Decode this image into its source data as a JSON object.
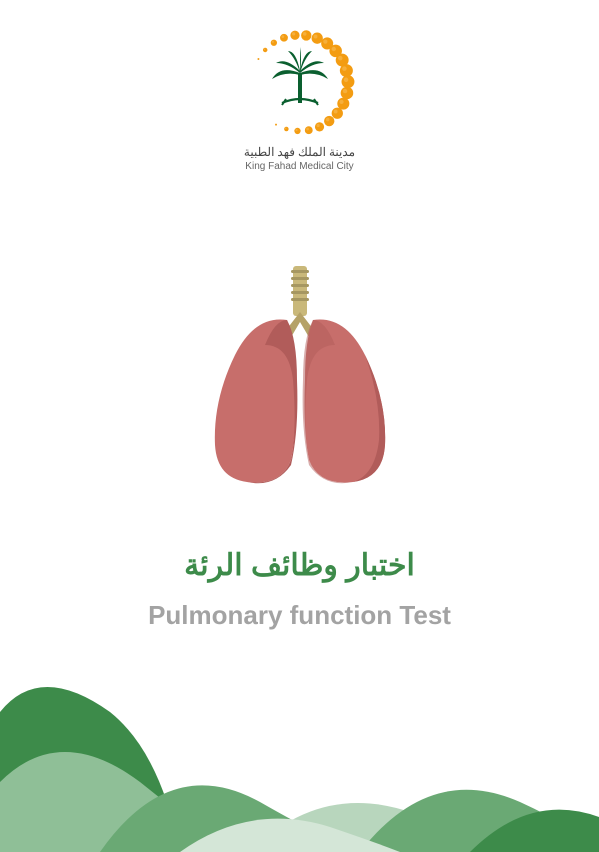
{
  "logo": {
    "arabic_text": "مدينة الملك فهد الطبية",
    "english_text": "King Fahad Medical City",
    "palm_color": "#0a5f2f",
    "crescent_dot_color": "#f39c12",
    "crescent_dot_highlight": "#f7b84d"
  },
  "lungs": {
    "lung_color": "#c76e6b",
    "lung_shadow": "#b15c5a",
    "trachea_color": "#c9b87a",
    "trachea_shadow": "#a69761",
    "bronchi_color": "#b5a268"
  },
  "titles": {
    "arabic": "اختبار وظائف الرئة",
    "arabic_color": "#3d8b4a",
    "english": "Pulmonary function Test",
    "english_color": "#a3a3a3"
  },
  "footer": {
    "shape_colors": [
      "#3d8b4a",
      "#6aa974",
      "#8fbf97",
      "#b8d6bd",
      "#d4e6d7"
    ]
  },
  "background_color": "#ffffff"
}
